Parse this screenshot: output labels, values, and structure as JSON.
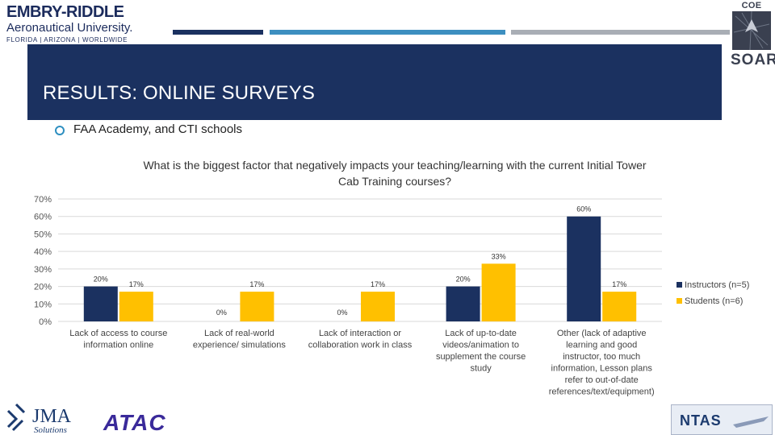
{
  "header": {
    "logo_name": "EMBRY-RIDDLE",
    "logo_sub": "Aeronautical University.",
    "logo_locations": "FLORIDA | ARIZONA | WORLDWIDE",
    "right_logo_top": "COE TTHP",
    "right_logo_bottom": "SOAR",
    "strip_colors": [
      "#1b3160",
      "#3d8fc0",
      "#a9aeb5"
    ]
  },
  "slide": {
    "title": "RESULTS: ONLINE SURVEYS",
    "bullet": "FAA Academy, and CTI schools"
  },
  "colors": {
    "banner": "#1b3160",
    "instructors": "#1b3160",
    "students": "#ffc000",
    "accent": "#2e8fc0"
  },
  "chart_data": {
    "type": "bar",
    "title_lines": [
      "What is the biggest factor that negatively impacts your teaching/learning with the current Initial Tower",
      "Cab Training courses?"
    ],
    "categories": [
      [
        "Lack of access to course",
        "information online"
      ],
      [
        "Lack of real-world",
        "experience/ simulations"
      ],
      [
        "Lack of interaction or",
        "collaboration work in class"
      ],
      [
        "Lack of up-to-date",
        "videos/animation to",
        "supplement the course",
        "study"
      ],
      [
        "Other (lack of adaptive",
        "learning and good",
        "instructor, too much",
        "information, Lesson plans",
        "refer to out-of-date",
        "references/text/equipment)"
      ]
    ],
    "series": [
      {
        "name": "Instructors (n=5)",
        "values": [
          20,
          0,
          0,
          20,
          60
        ],
        "labels": [
          "20%",
          "0%",
          "0%",
          "20%",
          "60%"
        ]
      },
      {
        "name": "Students (n=6)",
        "values": [
          17,
          17,
          17,
          33,
          17
        ],
        "labels": [
          "17%",
          "17%",
          "17%",
          "33%",
          "17%"
        ]
      }
    ],
    "ylim": [
      0,
      70
    ],
    "yticks": [
      0,
      10,
      20,
      30,
      40,
      50,
      60,
      70
    ],
    "ytick_labels": [
      "0%",
      "10%",
      "20%",
      "30%",
      "40%",
      "50%",
      "60%",
      "70%"
    ],
    "grid": true,
    "legend_position": "right"
  },
  "footer": {
    "logo_jma": "JMA",
    "logo_jma_sub": "Solutions",
    "logo_atac": "ATAC",
    "logo_ntas": "NTAS"
  }
}
